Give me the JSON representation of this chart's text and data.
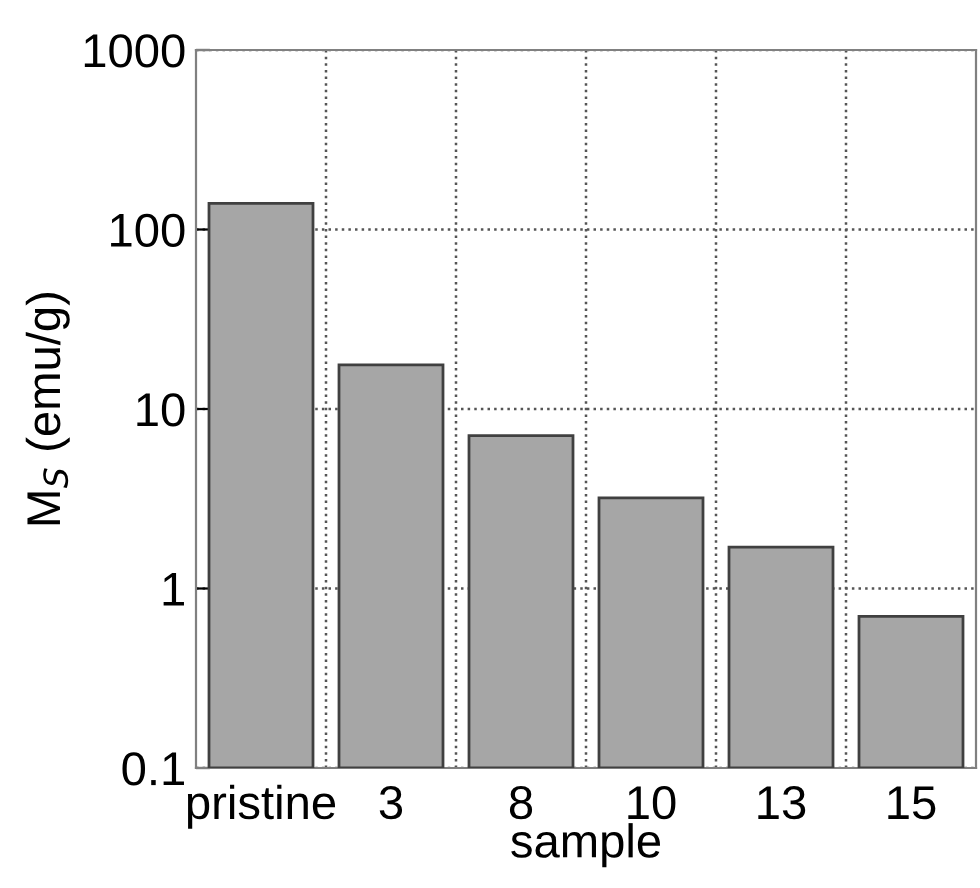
{
  "chart_data": {
    "type": "bar",
    "xlabel": "sample",
    "ylabel": "M$_{S}$ (emu/g)",
    "categories": [
      "pristine",
      "3",
      "8",
      "10",
      "13",
      "15"
    ],
    "values": [
      140,
      17.6,
      7.1,
      3.2,
      1.7,
      0.7
    ],
    "color": "#a6a6a6",
    "log": true,
    "ylim": [
      0.1,
      1000
    ],
    "yticks": [
      0.1,
      1,
      10,
      100,
      1000
    ],
    "grid": true,
    "legend": false
  }
}
